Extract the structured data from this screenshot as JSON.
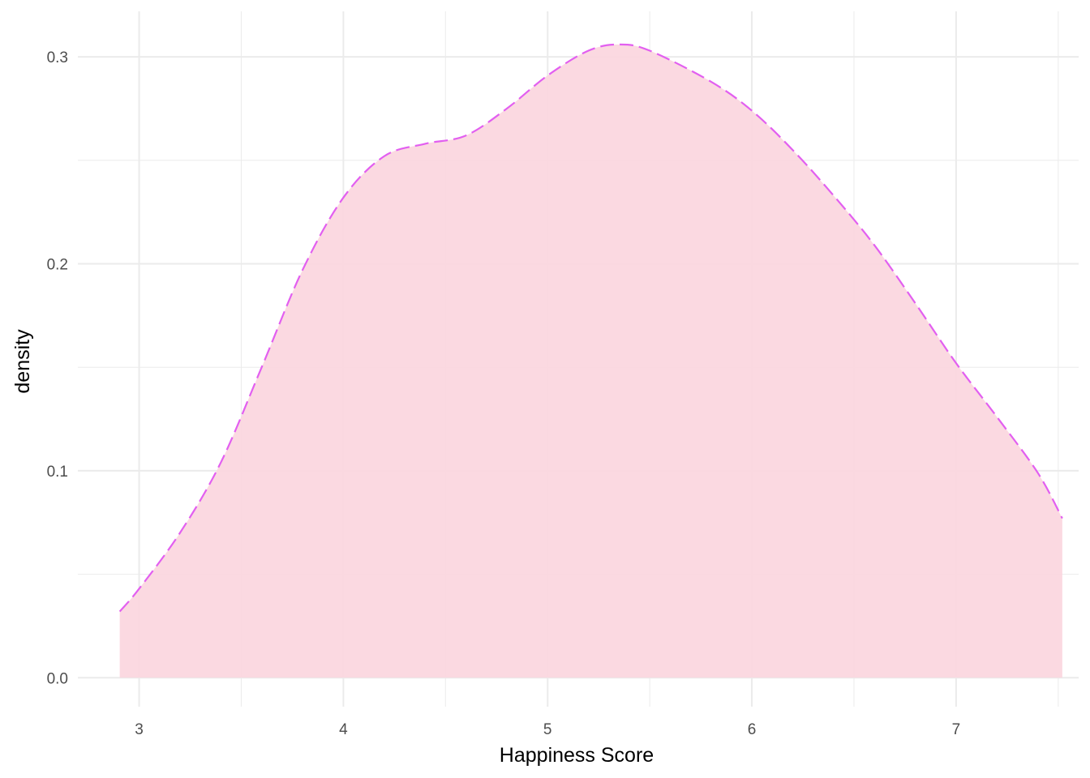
{
  "chart_data": {
    "type": "area",
    "title": "",
    "xlabel": "Happiness Score",
    "ylabel": "density",
    "xlim": [
      2.7,
      7.6
    ],
    "ylim": [
      -0.014,
      0.322
    ],
    "x_ticks": [
      "3",
      "4",
      "5",
      "6",
      "7"
    ],
    "y_ticks": [
      "0.0",
      "0.1",
      "0.2",
      "0.3"
    ],
    "grid": true,
    "legend": "none",
    "colors": {
      "fill": "#fbd7df",
      "line": "#e25ff0",
      "grid": "#ebebeb"
    },
    "line_style": "dashed",
    "series": [
      {
        "x": [
          2.905,
          3.0,
          3.2,
          3.4,
          3.6,
          3.8,
          4.0,
          4.2,
          4.4,
          4.6,
          4.8,
          5.0,
          5.2,
          5.35,
          5.5,
          5.8,
          6.0,
          6.2,
          6.4,
          6.6,
          6.8,
          7.0,
          7.2,
          7.4,
          7.52
        ],
        "y": [
          0.032,
          0.043,
          0.07,
          0.104,
          0.15,
          0.197,
          0.232,
          0.252,
          0.258,
          0.262,
          0.275,
          0.291,
          0.303,
          0.306,
          0.303,
          0.288,
          0.274,
          0.255,
          0.233,
          0.209,
          0.181,
          0.152,
          0.126,
          0.099,
          0.077
        ]
      }
    ]
  }
}
